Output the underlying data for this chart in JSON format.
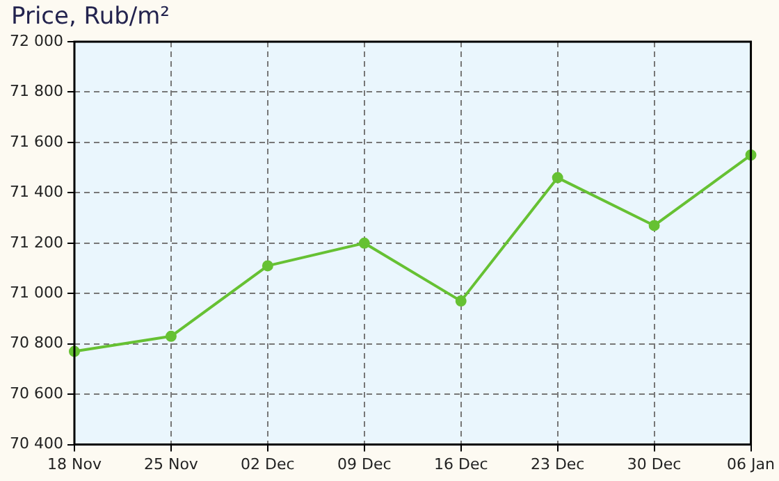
{
  "chart_data": {
    "type": "line",
    "title": "Price, Rub/m²",
    "categories": [
      "18 Nov",
      "25 Nov",
      "02 Dec",
      "09 Dec",
      "16 Dec",
      "23 Dec",
      "30 Dec",
      "06 Jan"
    ],
    "series": [
      {
        "color": "#66c133",
        "values": [
          70770,
          70830,
          71110,
          71200,
          70970,
          71460,
          71270,
          71550
        ]
      }
    ],
    "ylim": [
      70400,
      72000
    ],
    "yticks": [
      {
        "value": 70400,
        "label": "70 400"
      },
      {
        "value": 70600,
        "label": "70 600"
      },
      {
        "value": 70800,
        "label": "70 800"
      },
      {
        "value": 71000,
        "label": "71 000"
      },
      {
        "value": 71200,
        "label": "71 200"
      },
      {
        "value": 71400,
        "label": "71 400"
      },
      {
        "value": 71600,
        "label": "71 600"
      },
      {
        "value": 71800,
        "label": "71 800"
      },
      {
        "value": 72000,
        "label": "72 000"
      }
    ],
    "grid": true,
    "marker": "circle",
    "line_style": "solid",
    "legend": false
  }
}
